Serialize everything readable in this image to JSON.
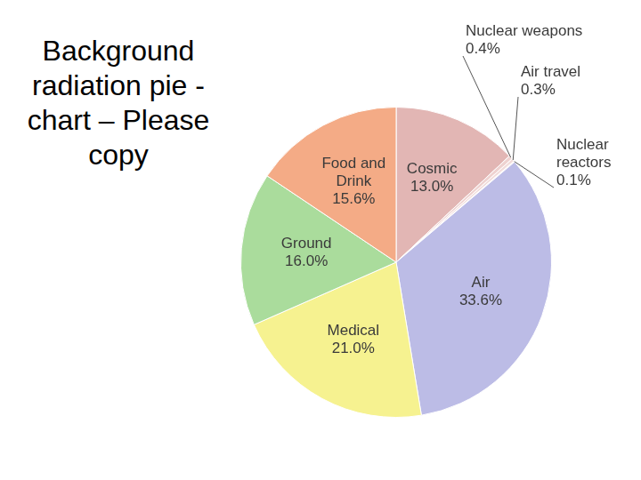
{
  "chart_data": {
    "type": "pie",
    "title": "Background radiation pie -chart – Please copy",
    "categories": [
      "Cosmic",
      "Nuclear weapons",
      "Air travel",
      "Nuclear reactors",
      "Air",
      "Medical",
      "Ground",
      "Food and Drink"
    ],
    "values": [
      13.0,
      0.4,
      0.3,
      0.1,
      33.6,
      21.0,
      16.0,
      15.6
    ],
    "value_labels": [
      "13.0%",
      "0.4%",
      "0.3%",
      "0.1%",
      "33.6%",
      "21.0%",
      "16.0%",
      "15.6%"
    ],
    "colors": [
      "#e2b6b4",
      "#eed2d0",
      "#f2dcda",
      "#f4e2e0",
      "#bcbce6",
      "#f6f290",
      "#aadc9c",
      "#f4ab86"
    ],
    "data_labels": true
  }
}
